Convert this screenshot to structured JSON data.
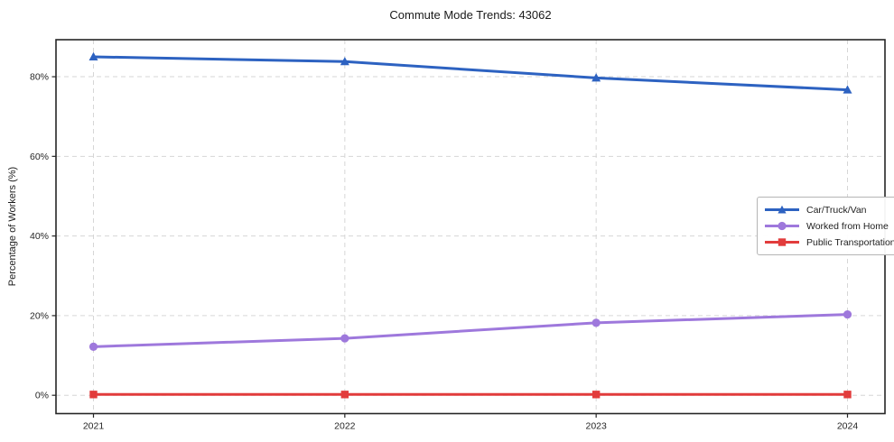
{
  "title": "Commute Mode Trends: 43062",
  "colors": {
    "grid": "#d6d6d6",
    "spine": "#262626",
    "tick_text": "#262626",
    "car": "#2d62c1",
    "home": "#9e78dc",
    "transit": "#e23c3c"
  },
  "chart_data": {
    "type": "line",
    "title": "Commute Mode Trends: 43062",
    "xlabel": "",
    "ylabel": "Percentage of Workers (%)",
    "x": [
      "2021",
      "2022",
      "2023",
      "2024"
    ],
    "series": [
      {
        "name": "Car/Truck/Van",
        "values": [
          85.0,
          83.8,
          79.7,
          76.7
        ],
        "color": "#2d62c1",
        "marker": "triangle"
      },
      {
        "name": "Worked from Home",
        "values": [
          12.2,
          14.3,
          18.2,
          20.3
        ],
        "color": "#9e78dc",
        "marker": "circle"
      },
      {
        "name": "Public Transportation",
        "values": [
          0.2,
          0.2,
          0.2,
          0.2
        ],
        "color": "#e23c3c",
        "marker": "square"
      }
    ],
    "yticks": [
      0,
      20,
      40,
      60,
      80
    ],
    "ytick_labels": [
      "0%",
      "20%",
      "40%",
      "60%",
      "80%"
    ],
    "ylim": [
      -4.6,
      89.3
    ],
    "grid": true,
    "grid_style": "dashed",
    "legend_position": "center right"
  }
}
